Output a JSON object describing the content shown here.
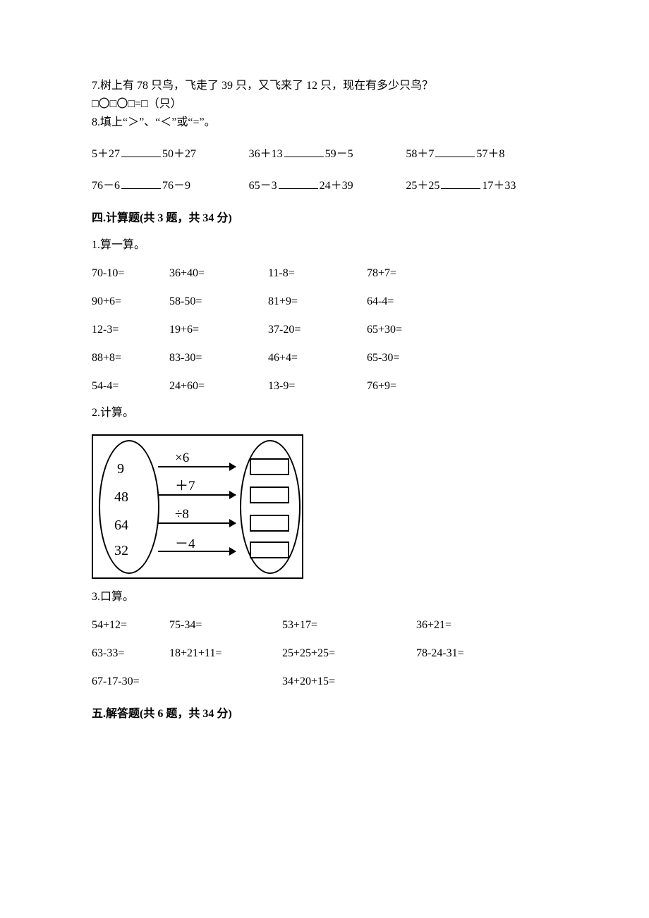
{
  "q7": {
    "text": "7.树上有 78 只鸟，飞走了 39 只，又飞来了 12 只，现在有多少只鸟？",
    "template": "□〇□〇□=□（只）"
  },
  "q8": {
    "intro": "8.填上“＞”、“＜”或“=”。",
    "rows": [
      [
        {
          "left": "5＋27",
          "right": "50＋27"
        },
        {
          "left": "36＋13",
          "right": "59－5"
        },
        {
          "left": "58＋7",
          "right": "57＋8"
        }
      ],
      [
        {
          "left": "76－6",
          "right": "76－9"
        },
        {
          "left": "65－3",
          "right": "24＋39"
        },
        {
          "left": "25＋25",
          "right": "17＋33",
          "wrap": true
        }
      ]
    ]
  },
  "section4": {
    "title": "四.计算题(共 3 题，共 34 分)"
  },
  "s4q1": {
    "title": "1.算一算。",
    "rows": [
      [
        "70-10=",
        "36+40=",
        "11-8=",
        "78+7="
      ],
      [
        "90+6=",
        "58-50=",
        "81+9=",
        "64-4="
      ],
      [
        "12-3=",
        "19+6=",
        "37-20=",
        "65+30="
      ],
      [
        "88+8=",
        "83-30=",
        "46+4=",
        "65-30="
      ],
      [
        "54-4=",
        "24+60=",
        "13-9=",
        "76+9="
      ]
    ]
  },
  "s4q2": {
    "title": "2.计算。",
    "diagram": {
      "left_values": [
        "9",
        "48",
        "64",
        "32"
      ],
      "operations": [
        "×6",
        "＋7",
        "÷8",
        "－4"
      ]
    }
  },
  "s4q3": {
    "title": "3.口算。",
    "rows4": [
      [
        "54+12=",
        "75-34=",
        "53+17=",
        "36+21="
      ],
      [
        "63-33=",
        "18+21+11=",
        "25+25+25=",
        "78-24-31="
      ]
    ],
    "rows2": [
      [
        "67-17-30=",
        "34+20+15="
      ]
    ]
  },
  "section5": {
    "title": "五.解答题(共 6 题，共 34 分)"
  }
}
